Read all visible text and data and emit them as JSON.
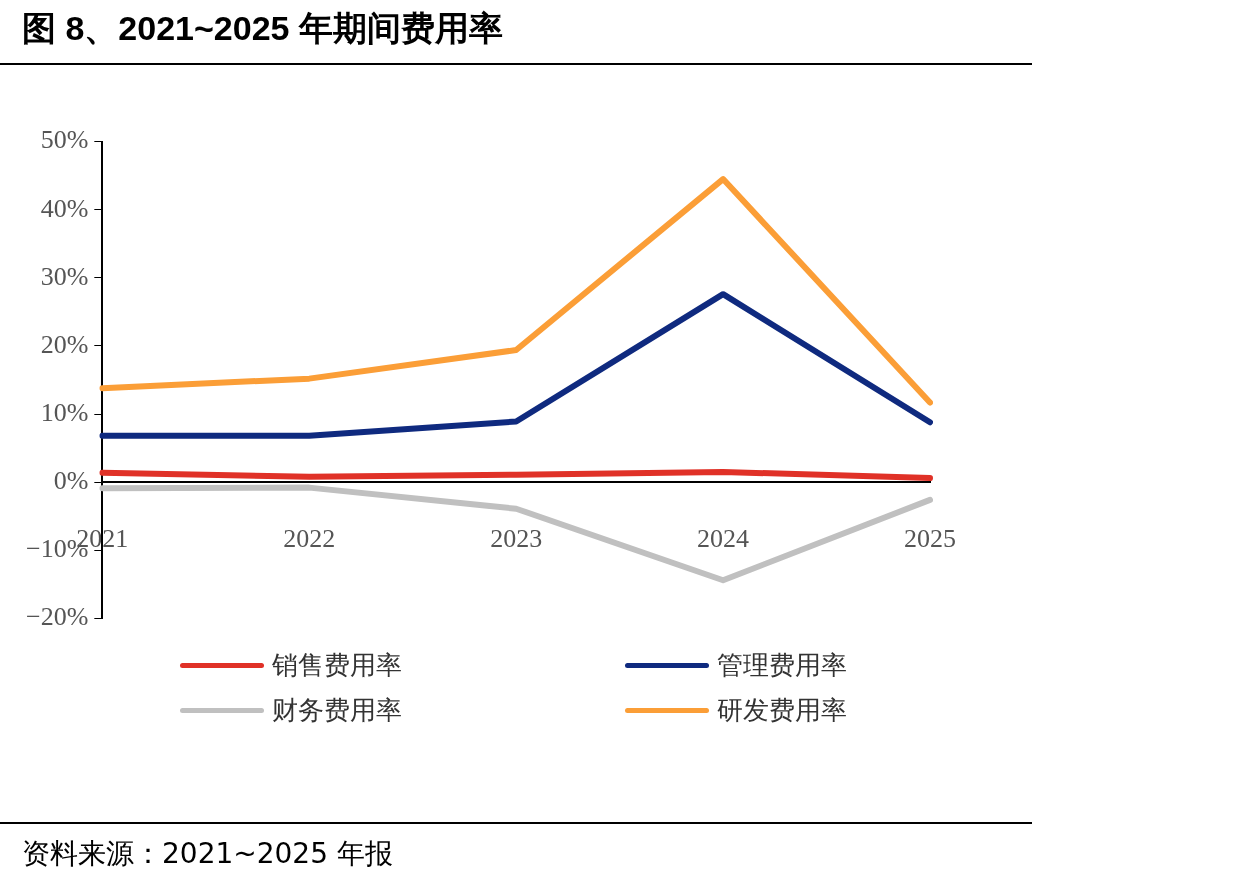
{
  "chart_data": {
    "type": "line",
    "title": "图 8、2021~2025 年期间费用率",
    "categories": [
      "2021",
      "2022",
      "2023",
      "2024",
      "2025"
    ],
    "series": [
      {
        "name": "销售费用率",
        "color": "#e03127",
        "values": [
          1.4,
          0.8,
          1.1,
          1.5,
          0.6
        ]
      },
      {
        "name": "管理费用率",
        "color": "#0f2a7f",
        "values": [
          6.8,
          6.8,
          8.9,
          27.6,
          8.8
        ]
      },
      {
        "name": "财务费用率",
        "color": "#c0c0c0",
        "values": [
          -0.9,
          -0.8,
          -3.9,
          -14.4,
          -2.6
        ]
      },
      {
        "name": "研发费用率",
        "color": "#fb9e37",
        "values": [
          13.8,
          15.2,
          19.4,
          44.5,
          11.7
        ]
      }
    ],
    "ylim": [
      -20,
      50
    ],
    "yticks": [
      {
        "value": -20,
        "label": "−20%"
      },
      {
        "value": -10,
        "label": "−10%"
      },
      {
        "value": 0,
        "label": "0%"
      },
      {
        "value": 10,
        "label": "10%"
      },
      {
        "value": 20,
        "label": "20%"
      },
      {
        "value": 30,
        "label": "30%"
      },
      {
        "value": 40,
        "label": "40%"
      },
      {
        "value": 50,
        "label": "50%"
      }
    ],
    "grid": false,
    "legend": "bottom",
    "marker": "none",
    "line_style": "solid",
    "annotations": [
      "资料来源：2021~2025 年报"
    ]
  }
}
